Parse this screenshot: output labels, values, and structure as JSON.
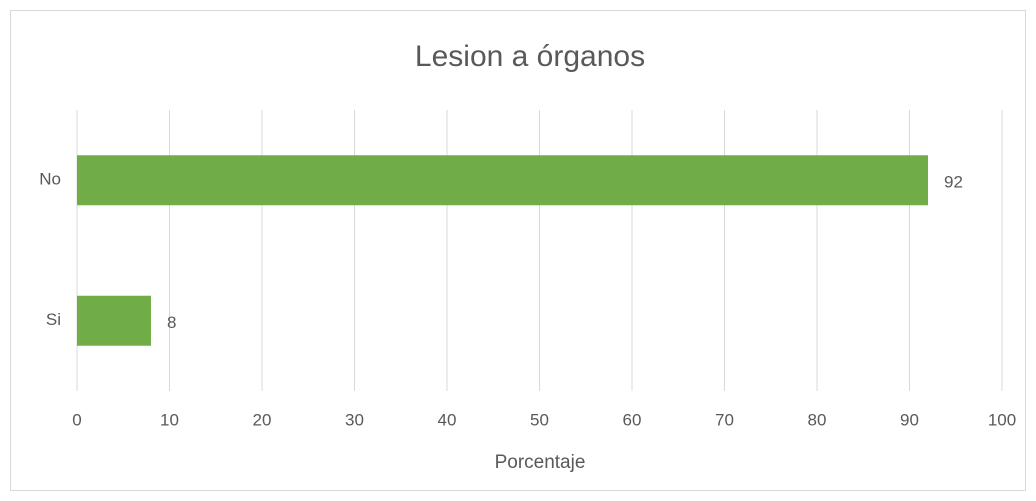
{
  "chart_data": {
    "type": "bar",
    "orientation": "horizontal",
    "title": "Lesion a órganos",
    "x_label": "Porcentaje",
    "categories": [
      "No",
      "Si"
    ],
    "values": [
      92,
      8
    ],
    "color": "#70ad47",
    "xlim": [
      0,
      100
    ],
    "xticks": [
      0,
      10,
      20,
      30,
      40,
      50,
      60,
      70,
      80,
      90,
      100
    ],
    "grid": true
  }
}
